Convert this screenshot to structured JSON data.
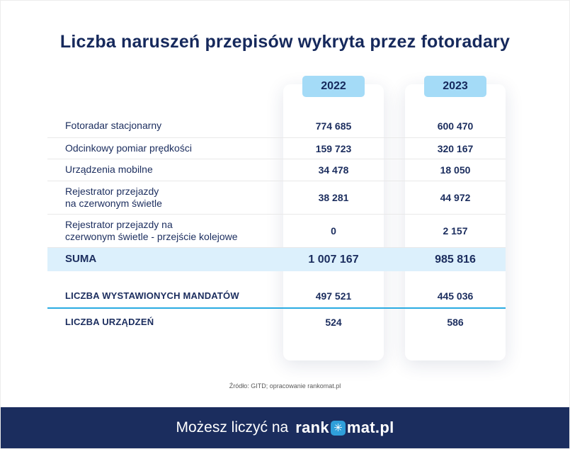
{
  "title": "Liczba naruszeń przepisów wykryta przez fotoradary",
  "colors": {
    "navy": "#1b2d5e",
    "badge_blue": "#a4dbf7",
    "suma_highlight": "#dcf0fc",
    "accent_blue": "#2aabe2",
    "logo_blue": "#2f9fda"
  },
  "table": {
    "column_headers": [
      "2022",
      "2023"
    ],
    "rows": [
      {
        "label": "Fotoradar stacjonarny",
        "values": [
          "774 685",
          "600 470"
        ]
      },
      {
        "label": "Odcinkowy pomiar prędkości",
        "values": [
          "159 723",
          "320 167"
        ]
      },
      {
        "label": "Urządzenia mobilne",
        "values": [
          "34 478",
          "18 050"
        ]
      },
      {
        "label": "Rejestrator przejazdy\nna czerwonym świetle",
        "values": [
          "38 281",
          "44 972"
        ]
      },
      {
        "label": "Rejestrator przejazdy na\nczerwonym świetle - przejście kolejowe",
        "values": [
          "0",
          "2 157"
        ]
      },
      {
        "label": "SUMA",
        "values": [
          "1 007 167",
          "985 816"
        ]
      },
      {
        "label": "LICZBA WYSTAWIONYCH MANDATÓW",
        "values": [
          "497 521",
          "445 036"
        ]
      },
      {
        "label": "LICZBA URZĄDZEŃ",
        "values": [
          "524",
          "586"
        ]
      }
    ]
  },
  "source_note": "Źródło: GITD; opracowanie rankomat.pl",
  "footer": {
    "tagline": "Możesz liczyć na",
    "logo_prefix": "rank",
    "logo_icon": "✳",
    "logo_suffix": "mat.pl"
  },
  "chart_data": {
    "type": "table",
    "title": "Liczba naruszeń przepisów wykryta przez fotoradary",
    "columns": [
      "2022",
      "2023"
    ],
    "rows": [
      {
        "label": "Fotoradar stacjonarny",
        "2022": 774685,
        "2023": 600470
      },
      {
        "label": "Odcinkowy pomiar prędkości",
        "2022": 159723,
        "2023": 320167
      },
      {
        "label": "Urządzenia mobilne",
        "2022": 34478,
        "2023": 18050
      },
      {
        "label": "Rejestrator przejazdy na czerwonym świetle",
        "2022": 38281,
        "2023": 44972
      },
      {
        "label": "Rejestrator przejazdy na czerwonym świetle - przejście kolejowe",
        "2022": 0,
        "2023": 2157
      },
      {
        "label": "SUMA",
        "2022": 1007167,
        "2023": 985816
      },
      {
        "label": "LICZBA WYSTAWIONYCH MANDATÓW",
        "2022": 497521,
        "2023": 445036
      },
      {
        "label": "LICZBA URZĄDZEŃ",
        "2022": 524,
        "2023": 586
      }
    ],
    "source": "Źródło: GITD; opracowanie rankomat.pl"
  }
}
